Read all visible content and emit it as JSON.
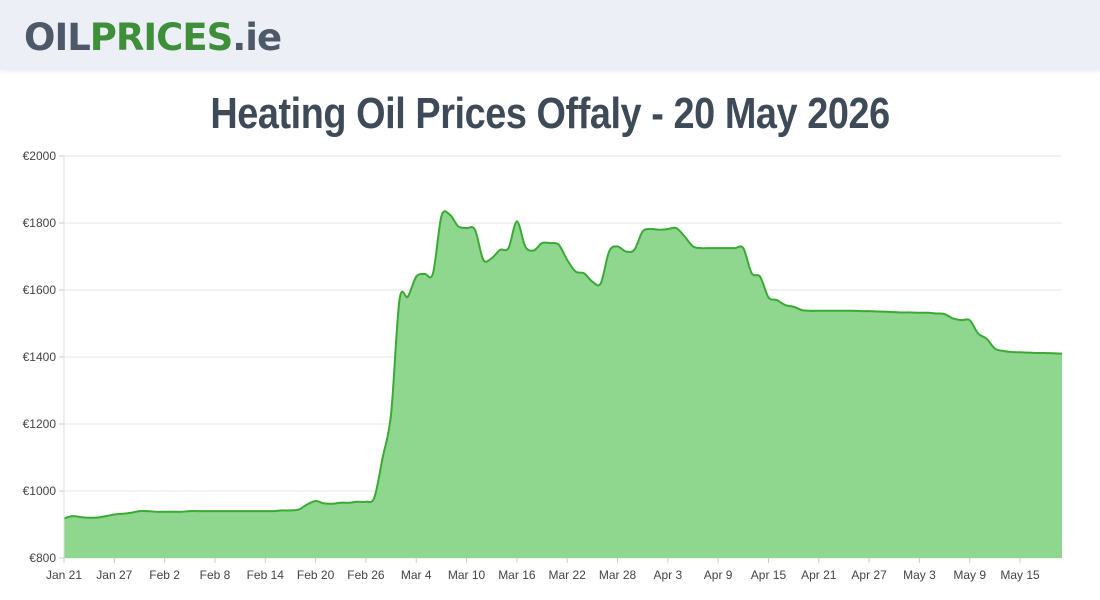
{
  "header": {
    "logo_part1": "OIL",
    "logo_part2": "PRICES",
    "logo_part3": ".ie"
  },
  "page": {
    "title": "Heating Oil Prices Offaly - 20 May 2026"
  },
  "colors": {
    "line": "#3aaa35",
    "fill": "#8fd68e",
    "grid": "#e6e6e6"
  },
  "chart_data": {
    "type": "area",
    "title": "Heating Oil Prices Offaly - 20 May 2026",
    "xlabel": "",
    "ylabel": "",
    "ylim": [
      800,
      2000
    ],
    "y_ticks": [
      800,
      1000,
      1200,
      1400,
      1600,
      1800,
      2000
    ],
    "y_tick_labels": [
      "€800",
      "€1000",
      "€1200",
      "€1400",
      "€1600",
      "€1800",
      "€2000"
    ],
    "x_ticks": [
      "Jan 21",
      "Jan 27",
      "Feb 2",
      "Feb 8",
      "Feb 14",
      "Feb 20",
      "Feb 26",
      "Mar 4",
      "Mar 10",
      "Mar 16",
      "Mar 22",
      "Mar 28",
      "Apr 3",
      "Apr 9",
      "Apr 15",
      "Apr 21",
      "Apr 27",
      "May 3",
      "May 9",
      "May 15"
    ],
    "grid": true,
    "legend": "none",
    "series": [
      {
        "x": [
          "Jan 21",
          "Jan 22",
          "Jan 23",
          "Jan 24",
          "Jan 25",
          "Jan 26",
          "Jan 27",
          "Jan 28",
          "Jan 29",
          "Jan 30",
          "Jan 31",
          "Feb 1",
          "Feb 2",
          "Feb 3",
          "Feb 4",
          "Feb 5",
          "Feb 6",
          "Feb 7",
          "Feb 8",
          "Feb 9",
          "Feb 10",
          "Feb 11",
          "Feb 12",
          "Feb 13",
          "Feb 14",
          "Feb 15",
          "Feb 16",
          "Feb 17",
          "Feb 18",
          "Feb 19",
          "Feb 20",
          "Feb 21",
          "Feb 22",
          "Feb 23",
          "Feb 24",
          "Feb 25",
          "Feb 26",
          "Feb 27",
          "Feb 28",
          "Mar 1",
          "Mar 2",
          "Mar 3",
          "Mar 4",
          "Mar 5",
          "Mar 6",
          "Mar 7",
          "Mar 8",
          "Mar 9",
          "Mar 10",
          "Mar 11",
          "Mar 12",
          "Mar 13",
          "Mar 14",
          "Mar 15",
          "Mar 16",
          "Mar 17",
          "Mar 18",
          "Mar 19",
          "Mar 20",
          "Mar 21",
          "Mar 22",
          "Mar 23",
          "Mar 24",
          "Mar 25",
          "Mar 26",
          "Mar 27",
          "Mar 28",
          "Mar 29",
          "Mar 30",
          "Mar 31",
          "Apr 1",
          "Apr 2",
          "Apr 3",
          "Apr 4",
          "Apr 5",
          "Apr 6",
          "Apr 7",
          "Apr 8",
          "Apr 9",
          "Apr 10",
          "Apr 11",
          "Apr 12",
          "Apr 13",
          "Apr 14",
          "Apr 15",
          "Apr 16",
          "Apr 17",
          "Apr 18",
          "Apr 19",
          "Apr 20",
          "Apr 21",
          "Apr 22",
          "Apr 23",
          "Apr 24",
          "Apr 25",
          "Apr 26",
          "Apr 27",
          "Apr 28",
          "Apr 29",
          "Apr 30",
          "May 1",
          "May 2",
          "May 3",
          "May 4",
          "May 5",
          "May 6",
          "May 7",
          "May 8",
          "May 9",
          "May 10",
          "May 11",
          "May 12",
          "May 13",
          "May 14",
          "May 15",
          "May 16",
          "May 17",
          "May 18",
          "May 19",
          "May 20"
        ],
        "values": [
          918,
          925,
          922,
          920,
          921,
          925,
          930,
          932,
          935,
          940,
          940,
          938,
          938,
          938,
          938,
          940,
          940,
          940,
          940,
          940,
          940,
          940,
          940,
          940,
          940,
          940,
          942,
          942,
          945,
          960,
          970,
          963,
          962,
          965,
          965,
          968,
          968,
          980,
          1100,
          1230,
          1570,
          1580,
          1640,
          1648,
          1650,
          1820,
          1825,
          1790,
          1785,
          1780,
          1690,
          1695,
          1720,
          1725,
          1805,
          1730,
          1718,
          1740,
          1740,
          1735,
          1690,
          1655,
          1650,
          1625,
          1620,
          1715,
          1730,
          1715,
          1720,
          1775,
          1782,
          1780,
          1782,
          1785,
          1760,
          1730,
          1725,
          1725,
          1725,
          1725,
          1725,
          1725,
          1650,
          1640,
          1578,
          1570,
          1555,
          1550,
          1540,
          1538,
          1538,
          1538,
          1538,
          1538,
          1538,
          1537,
          1537,
          1536,
          1535,
          1534,
          1533,
          1533,
          1532,
          1532,
          1530,
          1528,
          1515,
          1510,
          1510,
          1470,
          1455,
          1425,
          1418,
          1415,
          1414,
          1413,
          1412,
          1412,
          1411,
          1410
        ]
      }
    ]
  }
}
